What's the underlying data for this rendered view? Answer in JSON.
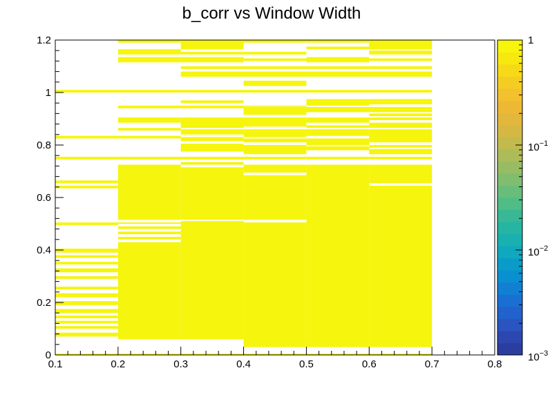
{
  "chart_data": {
    "type": "heatmap",
    "title": "b_corr vs Window Width",
    "xlabel": "",
    "ylabel": "",
    "xlim": [
      0.1,
      0.8
    ],
    "ylim": [
      0,
      1.2
    ],
    "x_ticks": [
      "0.1",
      "0.2",
      "0.3",
      "0.4",
      "0.5",
      "0.6",
      "0.7",
      "0.8"
    ],
    "y_ticks": [
      "0",
      "0.2",
      "0.4",
      "0.6",
      "0.8",
      "1",
      "1.2"
    ],
    "colorbar": {
      "scale": "log",
      "range": [
        0.001,
        1
      ],
      "tick_labels": [
        {
          "base": "1",
          "exp": ""
        },
        {
          "base": "10",
          "exp": "−1"
        },
        {
          "base": "10",
          "exp": "−2"
        },
        {
          "base": "10",
          "exp": "−3"
        }
      ],
      "colors": [
        "#2c3da0",
        "#2c48b0",
        "#2a55c0",
        "#2262cc",
        "#1a70d2",
        "#1180d2",
        "#0a8fd0",
        "#0a9cc8",
        "#10a8be",
        "#1ab0b0",
        "#25b5a2",
        "#38b894",
        "#50bc86",
        "#68bd7a",
        "#80bd6e",
        "#98bc63",
        "#aebb59",
        "#c3ba4e",
        "#d5b844",
        "#e3b63c",
        "#eeb835",
        "#f3c02e",
        "#f5cc24",
        "#f6da18",
        "#f7e80f",
        "#f6f50b"
      ]
    },
    "fill_color": "#f5f50e",
    "x_bins": [
      {
        "x0": 0.1,
        "x1": 0.2
      },
      {
        "x0": 0.2,
        "x1": 0.3
      },
      {
        "x0": 0.3,
        "x1": 0.4
      },
      {
        "x0": 0.4,
        "x1": 0.5
      },
      {
        "x0": 0.5,
        "x1": 0.6
      },
      {
        "x0": 0.6,
        "x1": 0.7
      }
    ],
    "filled_y_ranges": [
      [
        [
          0.0,
          0.005
        ],
        [
          0.07,
          0.085
        ],
        [
          0.1,
          0.11
        ],
        [
          0.12,
          0.13
        ],
        [
          0.14,
          0.15
        ],
        [
          0.16,
          0.175
        ],
        [
          0.19,
          0.205
        ],
        [
          0.22,
          0.235
        ],
        [
          0.25,
          0.26
        ],
        [
          0.29,
          0.3
        ],
        [
          0.315,
          0.33
        ],
        [
          0.345,
          0.355
        ],
        [
          0.37,
          0.38
        ],
        [
          0.39,
          0.405
        ],
        [
          0.495,
          0.505
        ],
        [
          0.635,
          0.645
        ],
        [
          0.655,
          0.665
        ],
        [
          0.745,
          0.755
        ],
        [
          0.825,
          0.835
        ],
        [
          1.0,
          1.01
        ]
      ],
      [
        [
          0.0,
          0.005
        ],
        [
          0.06,
          0.43
        ],
        [
          0.44,
          0.45
        ],
        [
          0.46,
          0.47
        ],
        [
          0.48,
          0.49
        ],
        [
          0.5,
          0.505
        ],
        [
          0.515,
          0.725
        ],
        [
          0.745,
          0.755
        ],
        [
          0.825,
          0.835
        ],
        [
          0.855,
          0.865
        ],
        [
          0.885,
          0.905
        ],
        [
          0.94,
          0.95
        ],
        [
          1.0,
          1.01
        ],
        [
          1.115,
          1.135
        ],
        [
          1.145,
          1.165
        ],
        [
          1.19,
          1.2
        ]
      ],
      [
        [
          0.0,
          0.005
        ],
        [
          0.06,
          0.51
        ],
        [
          0.515,
          0.715
        ],
        [
          0.725,
          0.735
        ],
        [
          0.745,
          0.755
        ],
        [
          0.775,
          0.805
        ],
        [
          0.815,
          0.83
        ],
        [
          0.84,
          0.86
        ],
        [
          0.865,
          0.905
        ],
        [
          0.94,
          0.95
        ],
        [
          0.96,
          0.97
        ],
        [
          1.0,
          1.01
        ],
        [
          1.06,
          1.08
        ],
        [
          1.09,
          1.1
        ],
        [
          1.115,
          1.135
        ],
        [
          1.145,
          1.155
        ],
        [
          1.165,
          1.2
        ]
      ],
      [
        [
          0.0,
          0.005
        ],
        [
          0.03,
          0.505
        ],
        [
          0.515,
          0.685
        ],
        [
          0.695,
          0.725
        ],
        [
          0.745,
          0.755
        ],
        [
          0.765,
          0.8
        ],
        [
          0.81,
          0.825
        ],
        [
          0.83,
          0.86
        ],
        [
          0.87,
          0.905
        ],
        [
          0.915,
          0.945
        ],
        [
          0.95,
          0.95
        ],
        [
          1.0,
          1.01
        ],
        [
          1.025,
          1.045
        ],
        [
          1.06,
          1.08
        ],
        [
          1.09,
          1.1
        ],
        [
          1.12,
          1.13
        ],
        [
          1.145,
          1.155
        ],
        [
          1.19,
          1.2
        ]
      ],
      [
        [
          0.0,
          0.005
        ],
        [
          0.03,
          0.725
        ],
        [
          0.745,
          0.755
        ],
        [
          0.78,
          0.795
        ],
        [
          0.8,
          0.825
        ],
        [
          0.835,
          0.86
        ],
        [
          0.865,
          0.875
        ],
        [
          0.885,
          0.905
        ],
        [
          0.925,
          0.945
        ],
        [
          0.95,
          0.975
        ],
        [
          1.0,
          1.01
        ],
        [
          1.06,
          1.08
        ],
        [
          1.09,
          1.1
        ],
        [
          1.115,
          1.135
        ],
        [
          1.165,
          1.175
        ],
        [
          1.19,
          1.2
        ]
      ],
      [
        [
          0.0,
          0.005
        ],
        [
          0.03,
          0.645
        ],
        [
          0.655,
          0.725
        ],
        [
          0.745,
          0.755
        ],
        [
          0.765,
          0.785
        ],
        [
          0.79,
          0.8
        ],
        [
          0.81,
          0.86
        ],
        [
          0.865,
          0.885
        ],
        [
          0.895,
          0.905
        ],
        [
          0.91,
          0.92
        ],
        [
          0.925,
          0.945
        ],
        [
          0.955,
          0.975
        ],
        [
          1.0,
          1.01
        ],
        [
          1.06,
          1.08
        ],
        [
          1.09,
          1.1
        ],
        [
          1.12,
          1.13
        ],
        [
          1.145,
          1.16
        ],
        [
          1.165,
          1.2
        ]
      ]
    ]
  }
}
